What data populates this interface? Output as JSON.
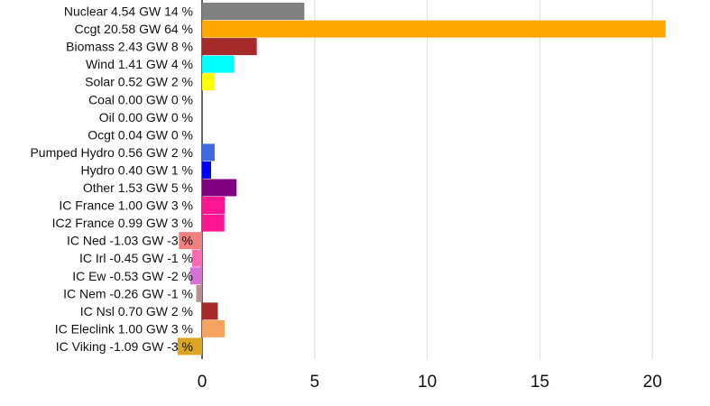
{
  "chart_data": {
    "type": "bar",
    "orientation": "horizontal",
    "title": "",
    "xlabel": "",
    "ylabel": "",
    "xlim": [
      -1.2,
      22.5
    ],
    "xticks": [
      0,
      5,
      10,
      15,
      20
    ],
    "grid": true,
    "legend": "none",
    "categories": [
      "Nuclear 4.54 GW 14 %",
      "Ccgt 20.58 GW 64 %",
      "Biomass 2.43 GW 8 %",
      "Wind 1.41 GW 4 %",
      "Solar 0.52 GW 2 %",
      "Coal 0.00 GW 0 %",
      "Oil 0.00 GW 0 %",
      "Ocgt 0.04 GW 0 %",
      "Pumped Hydro 0.56 GW 2 %",
      "Hydro 0.40 GW 1 %",
      "Other 1.53 GW 5 %",
      "IC France 1.00 GW 3 %",
      "IC2 France 0.99 GW 3 %",
      "IC Ned -1.03 GW -3 %",
      "IC Irl -0.45 GW -1 %",
      "IC Ew -0.53 GW -2 %",
      "IC Nem -0.26 GW -1 %",
      "IC Nsl 0.70 GW 2 %",
      "IC Eleclink 1.00 GW 3 %",
      "IC Viking -1.09 GW -3 %"
    ],
    "values": [
      4.54,
      20.58,
      2.43,
      1.41,
      0.52,
      0.0,
      0.0,
      0.04,
      0.56,
      0.4,
      1.53,
      1.0,
      0.99,
      -1.03,
      -0.45,
      -0.53,
      -0.26,
      0.7,
      1.0,
      -1.09
    ],
    "colors": [
      "#808080",
      "#ffa500",
      "#a52a2a",
      "#00ffff",
      "#ffff00",
      "#000000",
      "#444444",
      "#666666",
      "#4169e1",
      "#0000ff",
      "#800080",
      "#ff1493",
      "#ff1493",
      "#f08080",
      "#ff69b4",
      "#da70d6",
      "#bc8f8f",
      "#a52a2a",
      "#f4a460",
      "#daa520"
    ]
  }
}
